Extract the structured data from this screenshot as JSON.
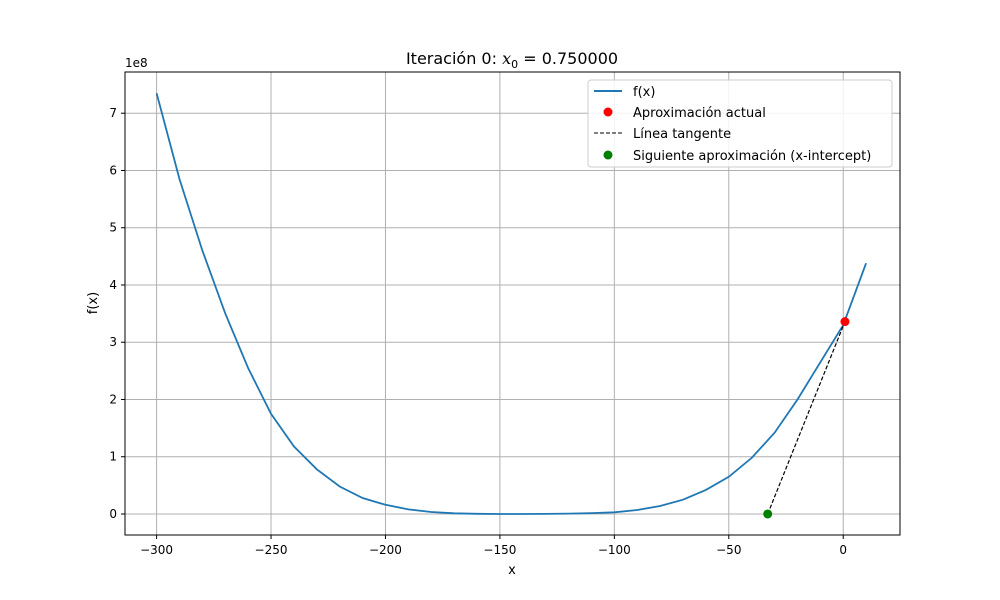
{
  "chart_data": {
    "type": "line",
    "title_prefix": "Iteración 0: ",
    "title_var": "x",
    "title_sub": "0",
    "title_suffix": " = 0.750000",
    "xlabel": "x",
    "ylabel": "f(x)",
    "y_offset_label": "1e8",
    "xlim": [
      -313.8,
      24.8
    ],
    "ylim": [
      -0.367,
      7.72
    ],
    "x_ticks": [
      -300,
      -250,
      -200,
      -150,
      -100,
      -50,
      0
    ],
    "x_tick_labels": [
      "−300",
      "−250",
      "−200",
      "−150",
      "−100",
      "−50",
      "0"
    ],
    "y_ticks": [
      0,
      1,
      2,
      3,
      4,
      5,
      6,
      7
    ],
    "y_tick_labels": [
      "0",
      "1",
      "2",
      "3",
      "4",
      "5",
      "6",
      "7"
    ],
    "grid": true,
    "legend_position": "top-right",
    "curve": {
      "name": "f(x)",
      "color": "#1f77b4",
      "x": [
        -300,
        -290,
        -280,
        -270,
        -260,
        -250,
        -240,
        -230,
        -220,
        -210,
        -200,
        -190,
        -180,
        -170,
        -160,
        -150,
        -140,
        -130,
        -120,
        -110,
        -100,
        -90,
        -80,
        -70,
        -60,
        -50,
        -40,
        -30,
        -20,
        -10,
        0,
        10
      ],
      "y": [
        7.35,
        5.85,
        4.6,
        3.5,
        2.55,
        1.75,
        1.18,
        0.78,
        0.48,
        0.28,
        0.16,
        0.08,
        0.035,
        0.012,
        0.003,
        0.0,
        0.0,
        0.002,
        0.006,
        0.015,
        0.03,
        0.07,
        0.14,
        0.25,
        0.42,
        0.65,
        0.98,
        1.42,
        2.0,
        2.65,
        3.3,
        4.38
      ]
    },
    "current_point": {
      "name": "Aproximación actual",
      "color": "#ff0000",
      "x": 0.75,
      "y": 3.36
    },
    "tangent_line": {
      "name": "Línea tangente",
      "color": "#000000",
      "x": [
        -33,
        0.75
      ],
      "y": [
        0,
        3.36
      ]
    },
    "next_point": {
      "name": "Siguiente aproximación (x-intercept)",
      "color": "#008000",
      "x": -33,
      "y": 0
    },
    "legend": [
      "f(x)",
      "Aproximación actual",
      "Línea tangente",
      "Siguiente aproximación (x-intercept)"
    ]
  }
}
